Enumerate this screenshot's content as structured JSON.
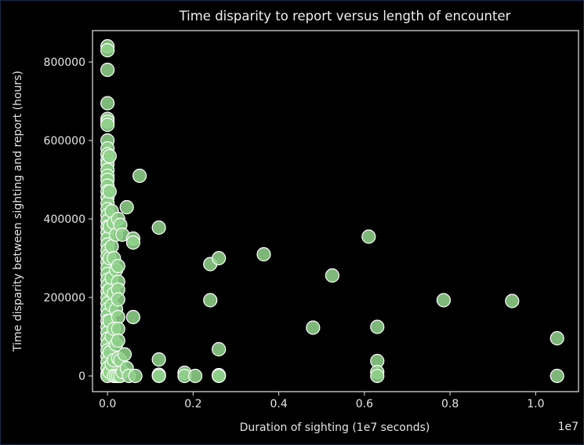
{
  "chart_data": {
    "type": "scatter",
    "title": "Time disparity to report versus length of encounter",
    "xlabel": "Duration of sighting (1e7 seconds)",
    "ylabel": "Time disparity between sighting and report (hours)",
    "x_offset_label": "1e7",
    "xlim": [
      -0.035,
      1.1
    ],
    "ylim": [
      -40000,
      880000
    ],
    "x_ticks": [
      0.0,
      0.2,
      0.4,
      0.6,
      0.8,
      1.0
    ],
    "x_tick_labels": [
      "0.0",
      "0.2",
      "0.4",
      "0.6",
      "0.8",
      "1.0"
    ],
    "y_ticks": [
      0,
      200000,
      400000,
      600000,
      800000
    ],
    "y_tick_labels": [
      "0",
      "200000",
      "400000",
      "600000",
      "800000"
    ],
    "grid": false,
    "colors": {
      "marker_fill": "#8fd18a",
      "marker_edge": "#ffffff",
      "background": "#000000",
      "axes": "#e6e6e6"
    },
    "series": [
      {
        "values": [
          [
            0.0,
            840000
          ],
          [
            0.0,
            830000
          ],
          [
            0.0,
            780000
          ],
          [
            0.0,
            695000
          ],
          [
            0.0,
            655000
          ],
          [
            0.0,
            648000
          ],
          [
            0.0,
            640000
          ],
          [
            0.0,
            600000
          ],
          [
            0.0,
            580000
          ],
          [
            0.0,
            565000
          ],
          [
            0.0,
            550000
          ],
          [
            0.0,
            540000
          ],
          [
            0.0,
            525000
          ],
          [
            0.0,
            510000
          ],
          [
            0.0,
            500000
          ],
          [
            0.0,
            485000
          ],
          [
            0.0,
            470000
          ],
          [
            0.0,
            455000
          ],
          [
            0.0,
            440000
          ],
          [
            0.0,
            425000
          ],
          [
            0.0,
            410000
          ],
          [
            0.0,
            395000
          ],
          [
            0.0,
            380000
          ],
          [
            0.0,
            365000
          ],
          [
            0.0,
            350000
          ],
          [
            0.0,
            335000
          ],
          [
            0.0,
            320000
          ],
          [
            0.0,
            305000
          ],
          [
            0.0,
            290000
          ],
          [
            0.0,
            275000
          ],
          [
            0.0,
            260000
          ],
          [
            0.0,
            245000
          ],
          [
            0.0,
            230000
          ],
          [
            0.0,
            215000
          ],
          [
            0.0,
            200000
          ],
          [
            0.0,
            185000
          ],
          [
            0.0,
            170000
          ],
          [
            0.0,
            155000
          ],
          [
            0.0,
            140000
          ],
          [
            0.0,
            125000
          ],
          [
            0.0,
            110000
          ],
          [
            0.0,
            95000
          ],
          [
            0.0,
            80000
          ],
          [
            0.0,
            65000
          ],
          [
            0.0,
            50000
          ],
          [
            0.0,
            35000
          ],
          [
            0.0,
            20000
          ],
          [
            0.0,
            5000
          ],
          [
            0.0,
            0
          ],
          [
            0.005,
            560000
          ],
          [
            0.005,
            470000
          ],
          [
            0.005,
            380000
          ],
          [
            0.005,
            300000
          ],
          [
            0.005,
            220000
          ],
          [
            0.005,
            140000
          ],
          [
            0.005,
            60000
          ],
          [
            0.005,
            10000
          ],
          [
            0.01,
            420000
          ],
          [
            0.01,
            330000
          ],
          [
            0.01,
            250000
          ],
          [
            0.01,
            180000
          ],
          [
            0.01,
            100000
          ],
          [
            0.01,
            30000
          ],
          [
            0.015,
            390000
          ],
          [
            0.015,
            300000
          ],
          [
            0.015,
            210000
          ],
          [
            0.015,
            120000
          ],
          [
            0.015,
            40000
          ],
          [
            0.015,
            0
          ],
          [
            0.02,
            360000
          ],
          [
            0.02,
            270000
          ],
          [
            0.02,
            170000
          ],
          [
            0.02,
            80000
          ],
          [
            0.02,
            0
          ],
          [
            0.025,
            400000
          ],
          [
            0.025,
            280000
          ],
          [
            0.025,
            240000
          ],
          [
            0.025,
            220000
          ],
          [
            0.025,
            195000
          ],
          [
            0.025,
            150000
          ],
          [
            0.025,
            120000
          ],
          [
            0.025,
            90000
          ],
          [
            0.025,
            45000
          ],
          [
            0.025,
            0
          ],
          [
            0.03,
            385000
          ],
          [
            0.03,
            40000
          ],
          [
            0.03,
            0
          ],
          [
            0.035,
            360000
          ],
          [
            0.035,
            10000
          ],
          [
            0.04,
            55000
          ],
          [
            0.045,
            430000
          ],
          [
            0.045,
            20000
          ],
          [
            0.05,
            0
          ],
          [
            0.06,
            350000
          ],
          [
            0.06,
            340000
          ],
          [
            0.06,
            150000
          ],
          [
            0.065,
            0
          ],
          [
            0.075,
            510000
          ],
          [
            0.12,
            378000
          ],
          [
            0.12,
            42000
          ],
          [
            0.12,
            3000
          ],
          [
            0.12,
            0
          ],
          [
            0.18,
            8000
          ],
          [
            0.18,
            0
          ],
          [
            0.205,
            0
          ],
          [
            0.24,
            285000
          ],
          [
            0.24,
            193000
          ],
          [
            0.26,
            300000
          ],
          [
            0.26,
            68000
          ],
          [
            0.26,
            2000
          ],
          [
            0.26,
            0
          ],
          [
            0.365,
            310000
          ],
          [
            0.48,
            123000
          ],
          [
            0.525,
            256000
          ],
          [
            0.61,
            355000
          ],
          [
            0.63,
            125000
          ],
          [
            0.63,
            38000
          ],
          [
            0.63,
            10000
          ],
          [
            0.63,
            0
          ],
          [
            0.785,
            193000
          ],
          [
            0.945,
            191000
          ],
          [
            1.05,
            96000
          ],
          [
            1.05,
            0
          ]
        ]
      }
    ]
  }
}
